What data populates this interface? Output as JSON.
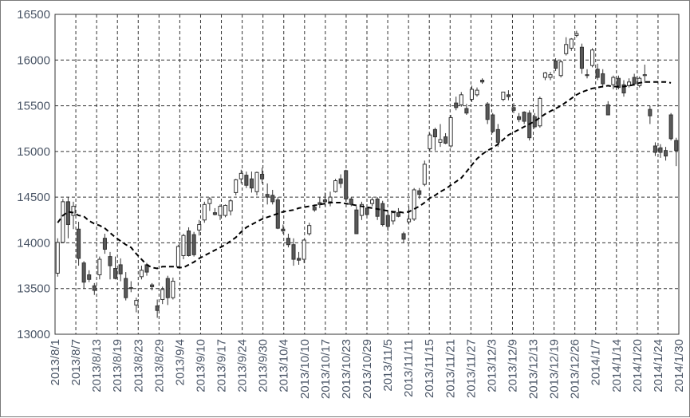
{
  "chart_data": {
    "type": "candlestick",
    "title": "",
    "xlabel": "",
    "ylabel": "",
    "ylim": [
      13000,
      16500
    ],
    "yticks": [
      "13000",
      "13500",
      "14000",
      "14500",
      "15000",
      "15500",
      "16000",
      "16500"
    ],
    "grid": true,
    "legend": "none",
    "xtick_labels": [
      "2013/8/1",
      "2013/8/7",
      "2013/8/13",
      "2013/8/19",
      "2013/8/23",
      "2013/8/29",
      "2013/9/4",
      "2013/9/10",
      "2013/9/17",
      "2013/9/24",
      "2013/9/30",
      "2013/10/4",
      "2013/10/10",
      "2013/10/17",
      "2013/10/23",
      "2013/10/29",
      "2013/11/5",
      "2013/11/11",
      "2013/11/15",
      "2013/11/21",
      "2013/11/27",
      "2013/12/3",
      "2013/12/9",
      "2013/12/13",
      "2013/12/19",
      "2013/12/26",
      "2014/1/7",
      "2014/1/14",
      "2014/1/20",
      "2014/1/24",
      "2014/1/30"
    ],
    "colors": {
      "up": "#ffffff",
      "down": "#595959",
      "edge": "#333333",
      "ma": "#000000"
    },
    "series": [
      {
        "kind": "ohlc",
        "values": [
          [
            13668,
            14050,
            13630,
            14005
          ],
          [
            14005,
            14480,
            14100,
            14450
          ],
          [
            14450,
            14500,
            14050,
            14200
          ],
          [
            14300,
            14450,
            14150,
            14400
          ],
          [
            14150,
            14230,
            13750,
            13830
          ],
          [
            13780,
            13800,
            13500,
            13570
          ],
          [
            13650,
            13700,
            13570,
            13600
          ],
          [
            13530,
            13560,
            13430,
            13480
          ],
          [
            13650,
            13850,
            13600,
            13820
          ],
          [
            14050,
            14100,
            13880,
            13930
          ],
          [
            13850,
            13900,
            13600,
            13750
          ],
          [
            13720,
            13850,
            13600,
            13610
          ],
          [
            13760,
            13830,
            13580,
            13660
          ],
          [
            13610,
            13680,
            13370,
            13400
          ],
          [
            13510,
            13580,
            13460,
            13500
          ],
          [
            13320,
            13400,
            13240,
            13370
          ],
          [
            13630,
            13750,
            13600,
            13700
          ],
          [
            13760,
            13780,
            13640,
            13680
          ],
          [
            13540,
            13560,
            13480,
            13520
          ],
          [
            13310,
            13380,
            13180,
            13260
          ],
          [
            13380,
            13520,
            13330,
            13490
          ],
          [
            13610,
            13640,
            13320,
            13400
          ],
          [
            13400,
            13620,
            13380,
            13580
          ],
          [
            13740,
            13980,
            13720,
            13960
          ],
          [
            13860,
            14100,
            13820,
            14080
          ],
          [
            14130,
            14170,
            13850,
            13860
          ],
          [
            14090,
            14120,
            13850,
            13870
          ],
          [
            14140,
            14250,
            14080,
            14200
          ],
          [
            14250,
            14450,
            14220,
            14420
          ],
          [
            14430,
            14500,
            14350,
            14480
          ],
          [
            14330,
            14380,
            14300,
            14310
          ],
          [
            14300,
            14420,
            14250,
            14400
          ],
          [
            14300,
            14420,
            14280,
            14410
          ],
          [
            14350,
            14480,
            14300,
            14460
          ],
          [
            14550,
            14700,
            14520,
            14690
          ],
          [
            14700,
            14800,
            14650,
            14760
          ],
          [
            14740,
            14780,
            14600,
            14630
          ],
          [
            14700,
            14780,
            14550,
            14600
          ],
          [
            14560,
            14780,
            14520,
            14770
          ],
          [
            14750,
            14820,
            14650,
            14700
          ],
          [
            14530,
            14650,
            14420,
            14500
          ],
          [
            14520,
            14580,
            14420,
            14450
          ],
          [
            14470,
            14500,
            14150,
            14160
          ],
          [
            14150,
            14200,
            14100,
            14130
          ],
          [
            14050,
            14100,
            13950,
            13980
          ],
          [
            13980,
            14050,
            13750,
            13820
          ],
          [
            13830,
            13900,
            13760,
            13810
          ],
          [
            13820,
            14040,
            13780,
            14030
          ],
          [
            14100,
            14220,
            14080,
            14190
          ],
          [
            14390,
            14420,
            14340,
            14360
          ],
          [
            14440,
            14500,
            14380,
            14420
          ],
          [
            14470,
            14550,
            14400,
            14450
          ],
          [
            14450,
            14560,
            14400,
            14500
          ],
          [
            14560,
            14700,
            14550,
            14680
          ],
          [
            14700,
            14750,
            14600,
            14650
          ],
          [
            14790,
            14800,
            14450,
            14480
          ],
          [
            14480,
            14500,
            14400,
            14420
          ],
          [
            14360,
            14400,
            14100,
            14100
          ],
          [
            14300,
            14450,
            14250,
            14420
          ],
          [
            14380,
            14400,
            14290,
            14310
          ],
          [
            14430,
            14500,
            14400,
            14470
          ],
          [
            14480,
            14500,
            14250,
            14290
          ],
          [
            14430,
            14460,
            14180,
            14200
          ],
          [
            14300,
            14350,
            14130,
            14180
          ],
          [
            14240,
            14350,
            14200,
            14330
          ],
          [
            14330,
            14380,
            14280,
            14290
          ],
          [
            14100,
            14120,
            14000,
            14040
          ],
          [
            14230,
            14400,
            14200,
            14260
          ],
          [
            14260,
            14600,
            14240,
            14580
          ],
          [
            14570,
            14600,
            14480,
            14530
          ],
          [
            14640,
            14900,
            14620,
            14860
          ],
          [
            15030,
            15200,
            15010,
            15180
          ],
          [
            15240,
            15260,
            15010,
            15160
          ],
          [
            15100,
            15300,
            15050,
            15130
          ],
          [
            15160,
            15200,
            15080,
            15090
          ],
          [
            15060,
            15400,
            15040,
            15370
          ],
          [
            15530,
            15600,
            15450,
            15480
          ],
          [
            15510,
            15650,
            15490,
            15620
          ],
          [
            15470,
            15520,
            15400,
            15420
          ],
          [
            15570,
            15720,
            15540,
            15680
          ],
          [
            15620,
            15700,
            15600,
            15670
          ],
          [
            15780,
            15800,
            15740,
            15760
          ],
          [
            15520,
            15540,
            15300,
            15350
          ],
          [
            15400,
            15420,
            15200,
            15220
          ],
          [
            15240,
            15300,
            15050,
            15100
          ],
          [
            15570,
            15650,
            15550,
            15650
          ],
          [
            15620,
            15670,
            15560,
            15600
          ],
          [
            15480,
            15530,
            15420,
            15450
          ],
          [
            15380,
            15420,
            15320,
            15350
          ],
          [
            15430,
            15440,
            15300,
            15330
          ],
          [
            15420,
            15450,
            15120,
            15150
          ],
          [
            15380,
            15420,
            15250,
            15270
          ],
          [
            15280,
            15600,
            15260,
            15580
          ],
          [
            15810,
            15870,
            15780,
            15860
          ],
          [
            15810,
            15870,
            15780,
            15840
          ],
          [
            15990,
            16020,
            15880,
            15910
          ],
          [
            15830,
            16000,
            15810,
            15980
          ],
          [
            16070,
            16250,
            16050,
            16170
          ],
          [
            16130,
            16240,
            16100,
            16230
          ],
          [
            16270,
            16320,
            16250,
            16290
          ],
          [
            16140,
            16180,
            15850,
            15910
          ],
          [
            15840,
            15900,
            15800,
            15830
          ],
          [
            15940,
            16130,
            15920,
            16110
          ],
          [
            15900,
            15960,
            15780,
            15810
          ],
          [
            15850,
            15900,
            15700,
            15740
          ],
          [
            15510,
            15550,
            15400,
            15400
          ],
          [
            15730,
            15830,
            15680,
            15810
          ],
          [
            15800,
            15830,
            15680,
            15700
          ],
          [
            15730,
            15780,
            15600,
            15640
          ],
          [
            15720,
            15800,
            15700,
            15760
          ],
          [
            15810,
            15850,
            15720,
            15740
          ],
          [
            15720,
            15820,
            15700,
            15800
          ],
          [
            15830,
            15950,
            15750,
            15840
          ],
          [
            15460,
            15500,
            15300,
            15390
          ],
          [
            15060,
            15100,
            14950,
            14990
          ],
          [
            15040,
            15080,
            14930,
            14990
          ],
          [
            15010,
            15050,
            14900,
            14950
          ],
          [
            15400,
            15420,
            15120,
            15140
          ],
          [
            15120,
            15150,
            14840,
            15010
          ]
        ]
      },
      {
        "kind": "moving-average",
        "values": [
          14220,
          14300,
          14340,
          14330,
          14300,
          14290,
          14240,
          14210,
          14190,
          14160,
          14110,
          14060,
          14020,
          13980,
          13950,
          13880,
          13820,
          13760,
          13730,
          13720,
          13740,
          13740,
          13740,
          13730,
          13730,
          13760,
          13790,
          13830,
          13860,
          13890,
          13920,
          13950,
          13980,
          14020,
          14060,
          14120,
          14170,
          14200,
          14230,
          14260,
          14280,
          14300,
          14320,
          14340,
          14350,
          14360,
          14380,
          14390,
          14400,
          14410,
          14420,
          14430,
          14440,
          14440,
          14440,
          14430,
          14420,
          14410,
          14400,
          14390,
          14380,
          14370,
          14360,
          14350,
          14340,
          14340,
          14330,
          14340,
          14370,
          14400,
          14440,
          14490,
          14520,
          14560,
          14590,
          14630,
          14670,
          14710,
          14780,
          14850,
          14920,
          14970,
          15010,
          15040,
          15080,
          15130,
          15180,
          15210,
          15240,
          15270,
          15300,
          15330,
          15370,
          15410,
          15440,
          15470,
          15500,
          15540,
          15580,
          15620,
          15650,
          15670,
          15690,
          15700,
          15710,
          15720,
          15710,
          15710,
          15710,
          15720,
          15730,
          15750,
          15760,
          15760,
          15760,
          15760,
          15760,
          15750
        ]
      }
    ]
  }
}
